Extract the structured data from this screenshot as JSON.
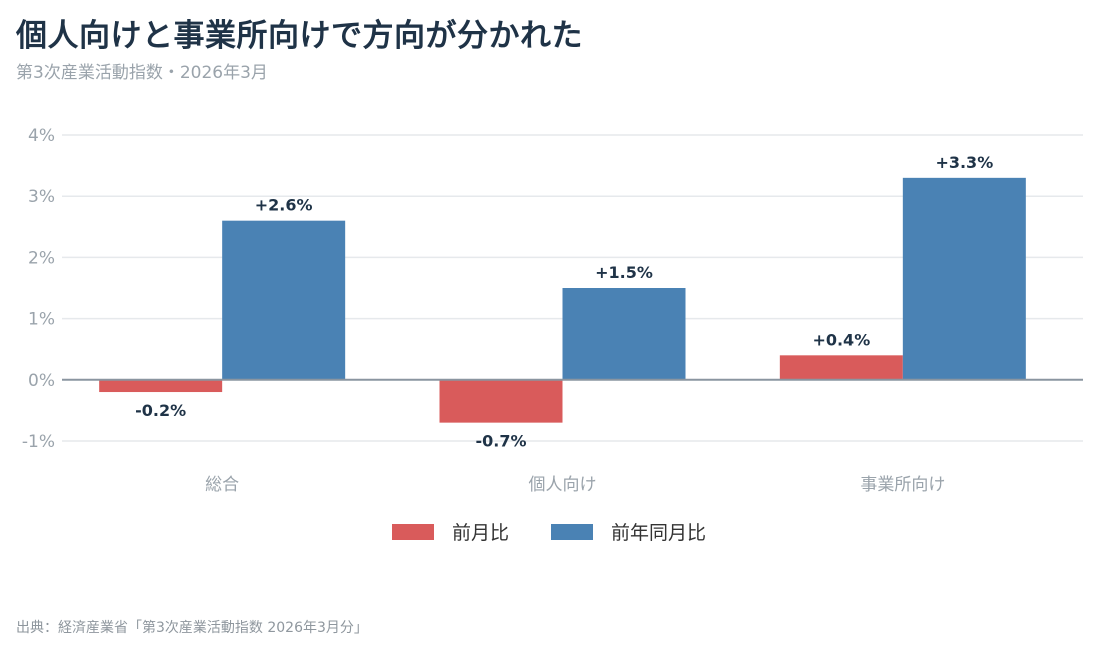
{
  "title": "個人向けと事業所向けで方向が分かれた",
  "subtitle": "第3次産業活動指数・2026年3月",
  "source": "出典：経済産業省「第3次産業活動指数 2026年3月分」",
  "colors": {
    "mom": "#d95b5b",
    "yoy": "#4a82b4",
    "grid": "#e6e9ec",
    "zero": "#8a95a0",
    "tick": "#9aa3ab",
    "label": "#1f3347"
  },
  "chart_data": {
    "type": "bar",
    "categories": [
      "総合",
      "個人向け",
      "事業所向け"
    ],
    "series": [
      {
        "name": "前月比",
        "values": [
          -0.2,
          -0.7,
          0.4
        ],
        "labels": [
          "-0.2%",
          "-0.7%",
          "+0.4%"
        ]
      },
      {
        "name": "前年同月比",
        "values": [
          2.6,
          1.5,
          3.3
        ],
        "labels": [
          "+2.6%",
          "+1.5%",
          "+3.3%"
        ]
      }
    ],
    "ylim": [
      -1,
      4
    ],
    "yticks": [
      -1,
      0,
      1,
      2,
      3,
      4
    ],
    "ytick_labels": [
      "-1%",
      "0%",
      "1%",
      "2%",
      "3%",
      "4%"
    ],
    "grid": true,
    "legend": "bottom-center"
  }
}
